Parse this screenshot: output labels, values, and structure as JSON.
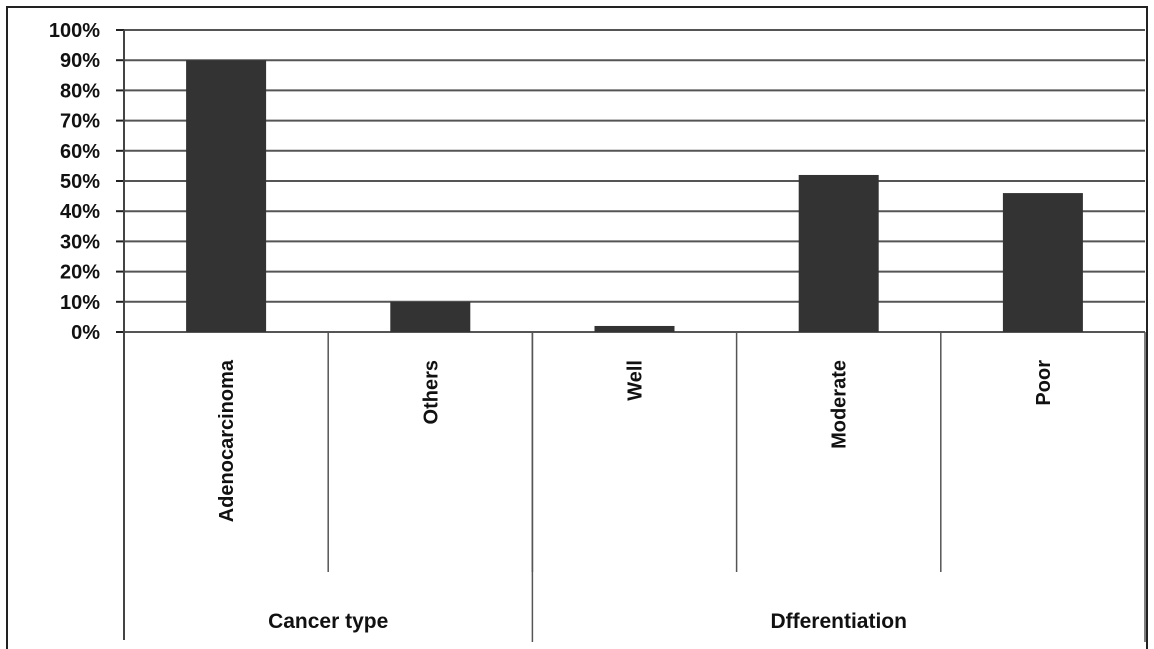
{
  "chart_data": {
    "type": "bar",
    "categories": [
      "Adenocarcinoma",
      "Others",
      "Well",
      "Moderate",
      "Poor"
    ],
    "values": [
      90,
      10,
      2,
      52,
      46
    ],
    "groups": [
      {
        "label": "Cancer type",
        "categories": [
          "Adenocarcinoma",
          "Others"
        ]
      },
      {
        "label": "Dfferentiation",
        "categories": [
          "Well",
          "Moderate",
          "Poor"
        ]
      }
    ],
    "y_ticks": [
      "0%",
      "10%",
      "20%",
      "30%",
      "40%",
      "50%",
      "60%",
      "70%",
      "80%",
      "90%",
      "100%"
    ],
    "ylim": [
      0,
      100
    ],
    "grid": true,
    "bar_color": "#333333",
    "grid_color": "#555555"
  }
}
